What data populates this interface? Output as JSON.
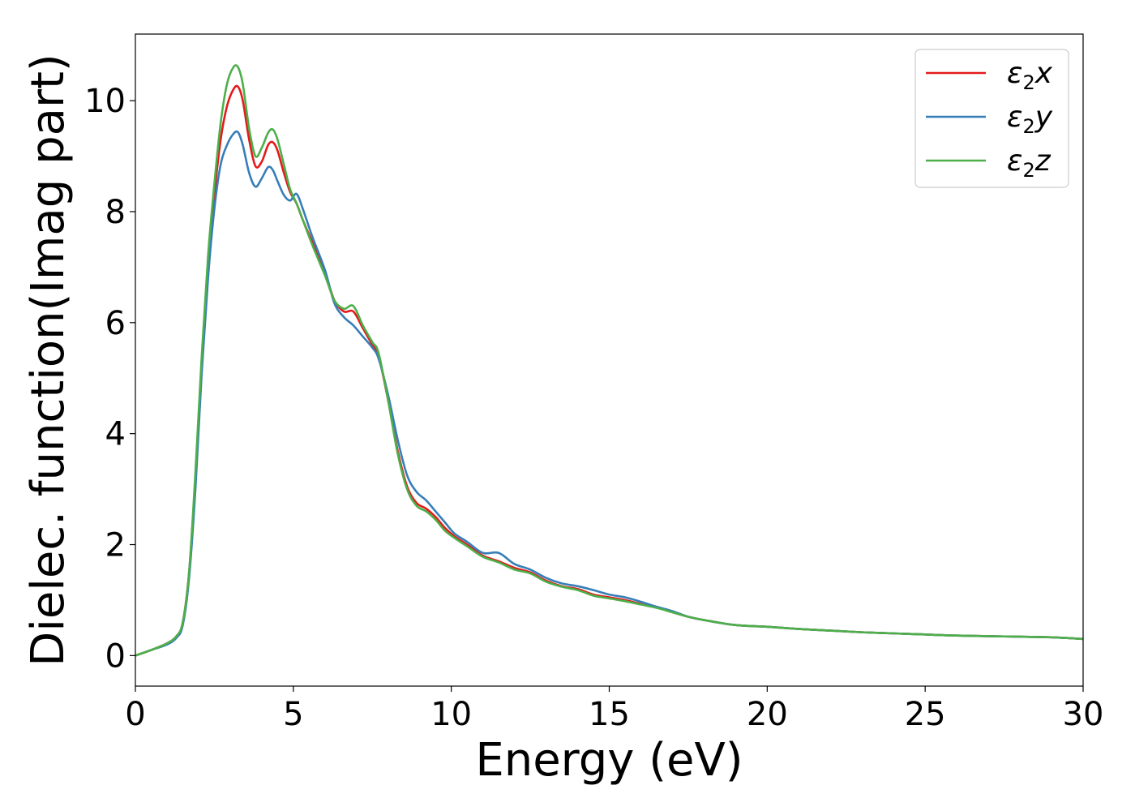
{
  "chart_data": {
    "type": "line",
    "xlabel": "Energy (eV)",
    "ylabel": "Dielec. function(Imag part)",
    "xlim": [
      0,
      30
    ],
    "ylim": [
      -0.55,
      11.2
    ],
    "xticks": [
      0,
      5,
      10,
      15,
      20,
      25,
      30
    ],
    "xtick_labels": [
      "0",
      "5",
      "10",
      "15",
      "20",
      "25",
      "30"
    ],
    "yticks": [
      0,
      2,
      4,
      6,
      8,
      10
    ],
    "ytick_labels": [
      "0",
      "2",
      "4",
      "6",
      "8",
      "10"
    ],
    "grid": false,
    "legend_position": "top-right",
    "series": [
      {
        "name": "ε2x",
        "legend_main": "ε",
        "legend_sub": "2",
        "legend_suffix": "x",
        "color": "#e41a1c",
        "x": [
          0,
          0.5,
          1.0,
          1.3,
          1.5,
          1.7,
          1.9,
          2.1,
          2.3,
          2.5,
          2.7,
          2.9,
          3.1,
          3.25,
          3.4,
          3.6,
          3.8,
          4.0,
          4.2,
          4.35,
          4.5,
          4.7,
          4.9,
          5.1,
          5.3,
          5.6,
          6.0,
          6.3,
          6.6,
          6.9,
          7.2,
          7.5,
          7.7,
          8.0,
          8.3,
          8.6,
          8.9,
          9.2,
          9.5,
          9.8,
          10.1,
          10.5,
          11.0,
          11.5,
          12.0,
          12.5,
          13.0,
          13.5,
          14.0,
          14.5,
          15.0,
          15.5,
          16.0,
          16.5,
          17.0,
          17.5,
          18.0,
          19.0,
          20.0,
          21.0,
          22.0,
          23.0,
          24.0,
          25.0,
          26.0,
          27.0,
          28.0,
          29.0,
          30.0
        ],
        "y": [
          0.0,
          0.1,
          0.22,
          0.35,
          0.6,
          1.5,
          3.2,
          5.3,
          7.0,
          8.3,
          9.3,
          9.9,
          10.2,
          10.25,
          10.0,
          9.3,
          8.82,
          8.9,
          9.2,
          9.25,
          9.1,
          8.7,
          8.35,
          8.15,
          7.85,
          7.45,
          6.9,
          6.4,
          6.2,
          6.2,
          5.9,
          5.6,
          5.4,
          4.6,
          3.7,
          3.05,
          2.75,
          2.65,
          2.5,
          2.3,
          2.15,
          2.0,
          1.8,
          1.7,
          1.58,
          1.5,
          1.35,
          1.25,
          1.2,
          1.1,
          1.05,
          1.0,
          0.93,
          0.87,
          0.78,
          0.7,
          0.64,
          0.55,
          0.52,
          0.48,
          0.45,
          0.42,
          0.4,
          0.38,
          0.36,
          0.35,
          0.34,
          0.33,
          0.3
        ]
      },
      {
        "name": "ε2y",
        "legend_main": "ε",
        "legend_sub": "2",
        "legend_suffix": "y",
        "color": "#377eb8",
        "x": [
          0,
          0.5,
          1.0,
          1.3,
          1.5,
          1.7,
          1.9,
          2.1,
          2.3,
          2.5,
          2.7,
          2.9,
          3.1,
          3.25,
          3.4,
          3.6,
          3.8,
          4.0,
          4.2,
          4.35,
          4.5,
          4.7,
          4.9,
          5.1,
          5.3,
          5.6,
          6.0,
          6.3,
          6.6,
          6.9,
          7.2,
          7.5,
          7.7,
          8.0,
          8.3,
          8.6,
          8.9,
          9.2,
          9.5,
          9.8,
          10.1,
          10.5,
          11.0,
          11.5,
          12.0,
          12.5,
          13.0,
          13.5,
          14.0,
          14.5,
          15.0,
          15.5,
          16.0,
          16.5,
          17.0,
          17.5,
          18.0,
          19.0,
          20.0,
          21.0,
          22.0,
          23.0,
          24.0,
          25.0,
          26.0,
          27.0,
          28.0,
          29.0,
          30.0
        ],
        "y": [
          0.0,
          0.1,
          0.2,
          0.32,
          0.55,
          1.4,
          3.0,
          5.1,
          6.8,
          8.05,
          8.85,
          9.2,
          9.4,
          9.43,
          9.2,
          8.7,
          8.45,
          8.6,
          8.8,
          8.75,
          8.55,
          8.3,
          8.2,
          8.32,
          8.05,
          7.55,
          6.95,
          6.35,
          6.1,
          5.95,
          5.75,
          5.55,
          5.35,
          4.7,
          3.9,
          3.25,
          2.95,
          2.8,
          2.6,
          2.4,
          2.2,
          2.05,
          1.85,
          1.85,
          1.65,
          1.55,
          1.4,
          1.3,
          1.25,
          1.18,
          1.1,
          1.05,
          0.97,
          0.88,
          0.8,
          0.7,
          0.64,
          0.55,
          0.52,
          0.48,
          0.45,
          0.42,
          0.4,
          0.38,
          0.36,
          0.35,
          0.34,
          0.33,
          0.3
        ]
      },
      {
        "name": "ε2z",
        "legend_main": "ε",
        "legend_sub": "2",
        "legend_suffix": "z",
        "color": "#4daf4a",
        "x": [
          0,
          0.5,
          1.0,
          1.3,
          1.5,
          1.7,
          1.9,
          2.1,
          2.3,
          2.5,
          2.7,
          2.9,
          3.1,
          3.25,
          3.4,
          3.6,
          3.8,
          4.0,
          4.2,
          4.35,
          4.5,
          4.7,
          4.9,
          5.1,
          5.3,
          5.6,
          6.0,
          6.3,
          6.6,
          6.9,
          7.2,
          7.5,
          7.7,
          8.0,
          8.3,
          8.6,
          8.9,
          9.2,
          9.5,
          9.8,
          10.1,
          10.5,
          11.0,
          11.5,
          12.0,
          12.5,
          13.0,
          13.5,
          14.0,
          14.5,
          15.0,
          15.5,
          16.0,
          16.5,
          17.0,
          17.5,
          18.0,
          19.0,
          20.0,
          21.0,
          22.0,
          23.0,
          24.0,
          25.0,
          26.0,
          27.0,
          28.0,
          29.0,
          30.0
        ],
        "y": [
          0.0,
          0.1,
          0.22,
          0.35,
          0.6,
          1.5,
          3.3,
          5.4,
          7.2,
          8.5,
          9.6,
          10.3,
          10.6,
          10.6,
          10.3,
          9.5,
          9.0,
          9.15,
          9.42,
          9.48,
          9.3,
          8.85,
          8.4,
          8.15,
          7.85,
          7.4,
          6.85,
          6.4,
          6.25,
          6.3,
          5.95,
          5.65,
          5.45,
          4.6,
          3.65,
          3.0,
          2.7,
          2.6,
          2.45,
          2.25,
          2.12,
          1.97,
          1.78,
          1.68,
          1.55,
          1.48,
          1.33,
          1.24,
          1.18,
          1.08,
          1.03,
          0.98,
          0.92,
          0.86,
          0.78,
          0.7,
          0.64,
          0.55,
          0.52,
          0.48,
          0.45,
          0.42,
          0.4,
          0.38,
          0.36,
          0.35,
          0.34,
          0.33,
          0.3
        ]
      }
    ]
  }
}
